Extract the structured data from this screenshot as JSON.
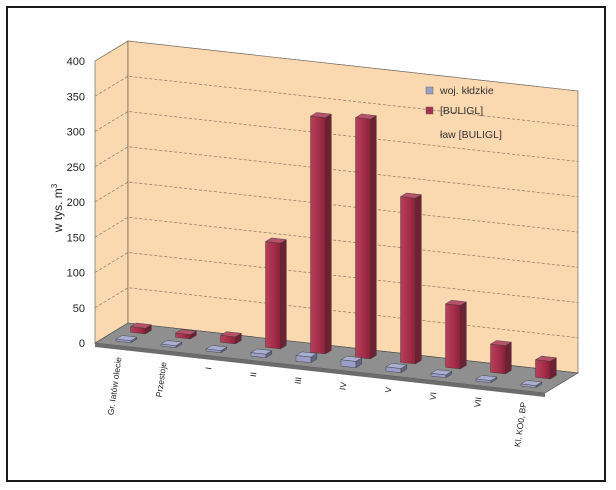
{
  "chart_data": {
    "type": "bar",
    "ylabel": "w tys. m",
    "ylabel_superscript": "3",
    "ylim": [
      0,
      400
    ],
    "yticks": [
      0,
      50,
      100,
      150,
      200,
      250,
      300,
      350,
      400
    ],
    "categories": [
      "Gr. Iatów olecie",
      "Przestoje",
      "I",
      "II",
      "III",
      "IV",
      "V",
      "VI",
      "VII",
      "Kl. KO0, BP"
    ],
    "series": [
      {
        "name": "woj. kłdzkie",
        "color": "#9a9ec8",
        "values": [
          2,
          2,
          3,
          5,
          8,
          9,
          6,
          4,
          3,
          3
        ]
      },
      {
        "name": "[BULIGL]",
        "color": "#a8324e",
        "values": [
          8,
          6,
          10,
          150,
          335,
          340,
          235,
          90,
          40,
          25
        ]
      }
    ],
    "legend_note": "ław [BULIGL]",
    "grid": true,
    "legend_position": "top-right",
    "wall_color": "#fad8b0",
    "floor_color": "#8f8f8f"
  }
}
